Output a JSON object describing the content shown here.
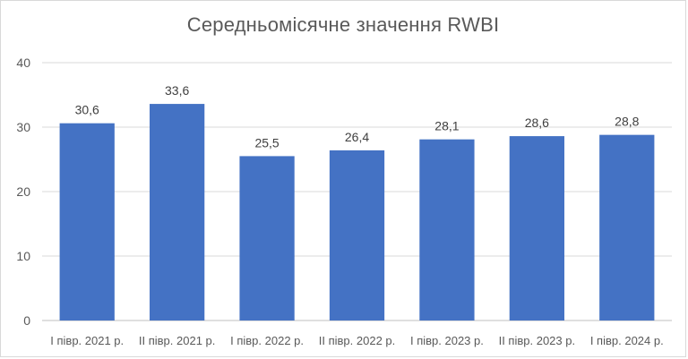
{
  "chart_data": {
    "type": "bar",
    "title": "Середньомісячне значення RWBI",
    "categories": [
      "I півр. 2021 р.",
      "II півр. 2021 р.",
      "I півр. 2022 р.",
      "II півр. 2022 р.",
      "I півр. 2023 р.",
      "II півр. 2023 р.",
      "I півр. 2024 р."
    ],
    "values": [
      30.6,
      33.6,
      25.5,
      26.4,
      28.1,
      28.6,
      28.8
    ],
    "value_labels": [
      "30,6",
      "33,6",
      "25,5",
      "26,4",
      "28,1",
      "28,6",
      "28,8"
    ],
    "ylim": [
      0,
      40
    ],
    "yticks": [
      0,
      10,
      20,
      30,
      40
    ],
    "xlabel": "",
    "ylabel": "",
    "grid": true,
    "legend": "none",
    "bar_color": "#4472c4",
    "grid_color": "#d9d9d9",
    "text_color": "#595959"
  }
}
